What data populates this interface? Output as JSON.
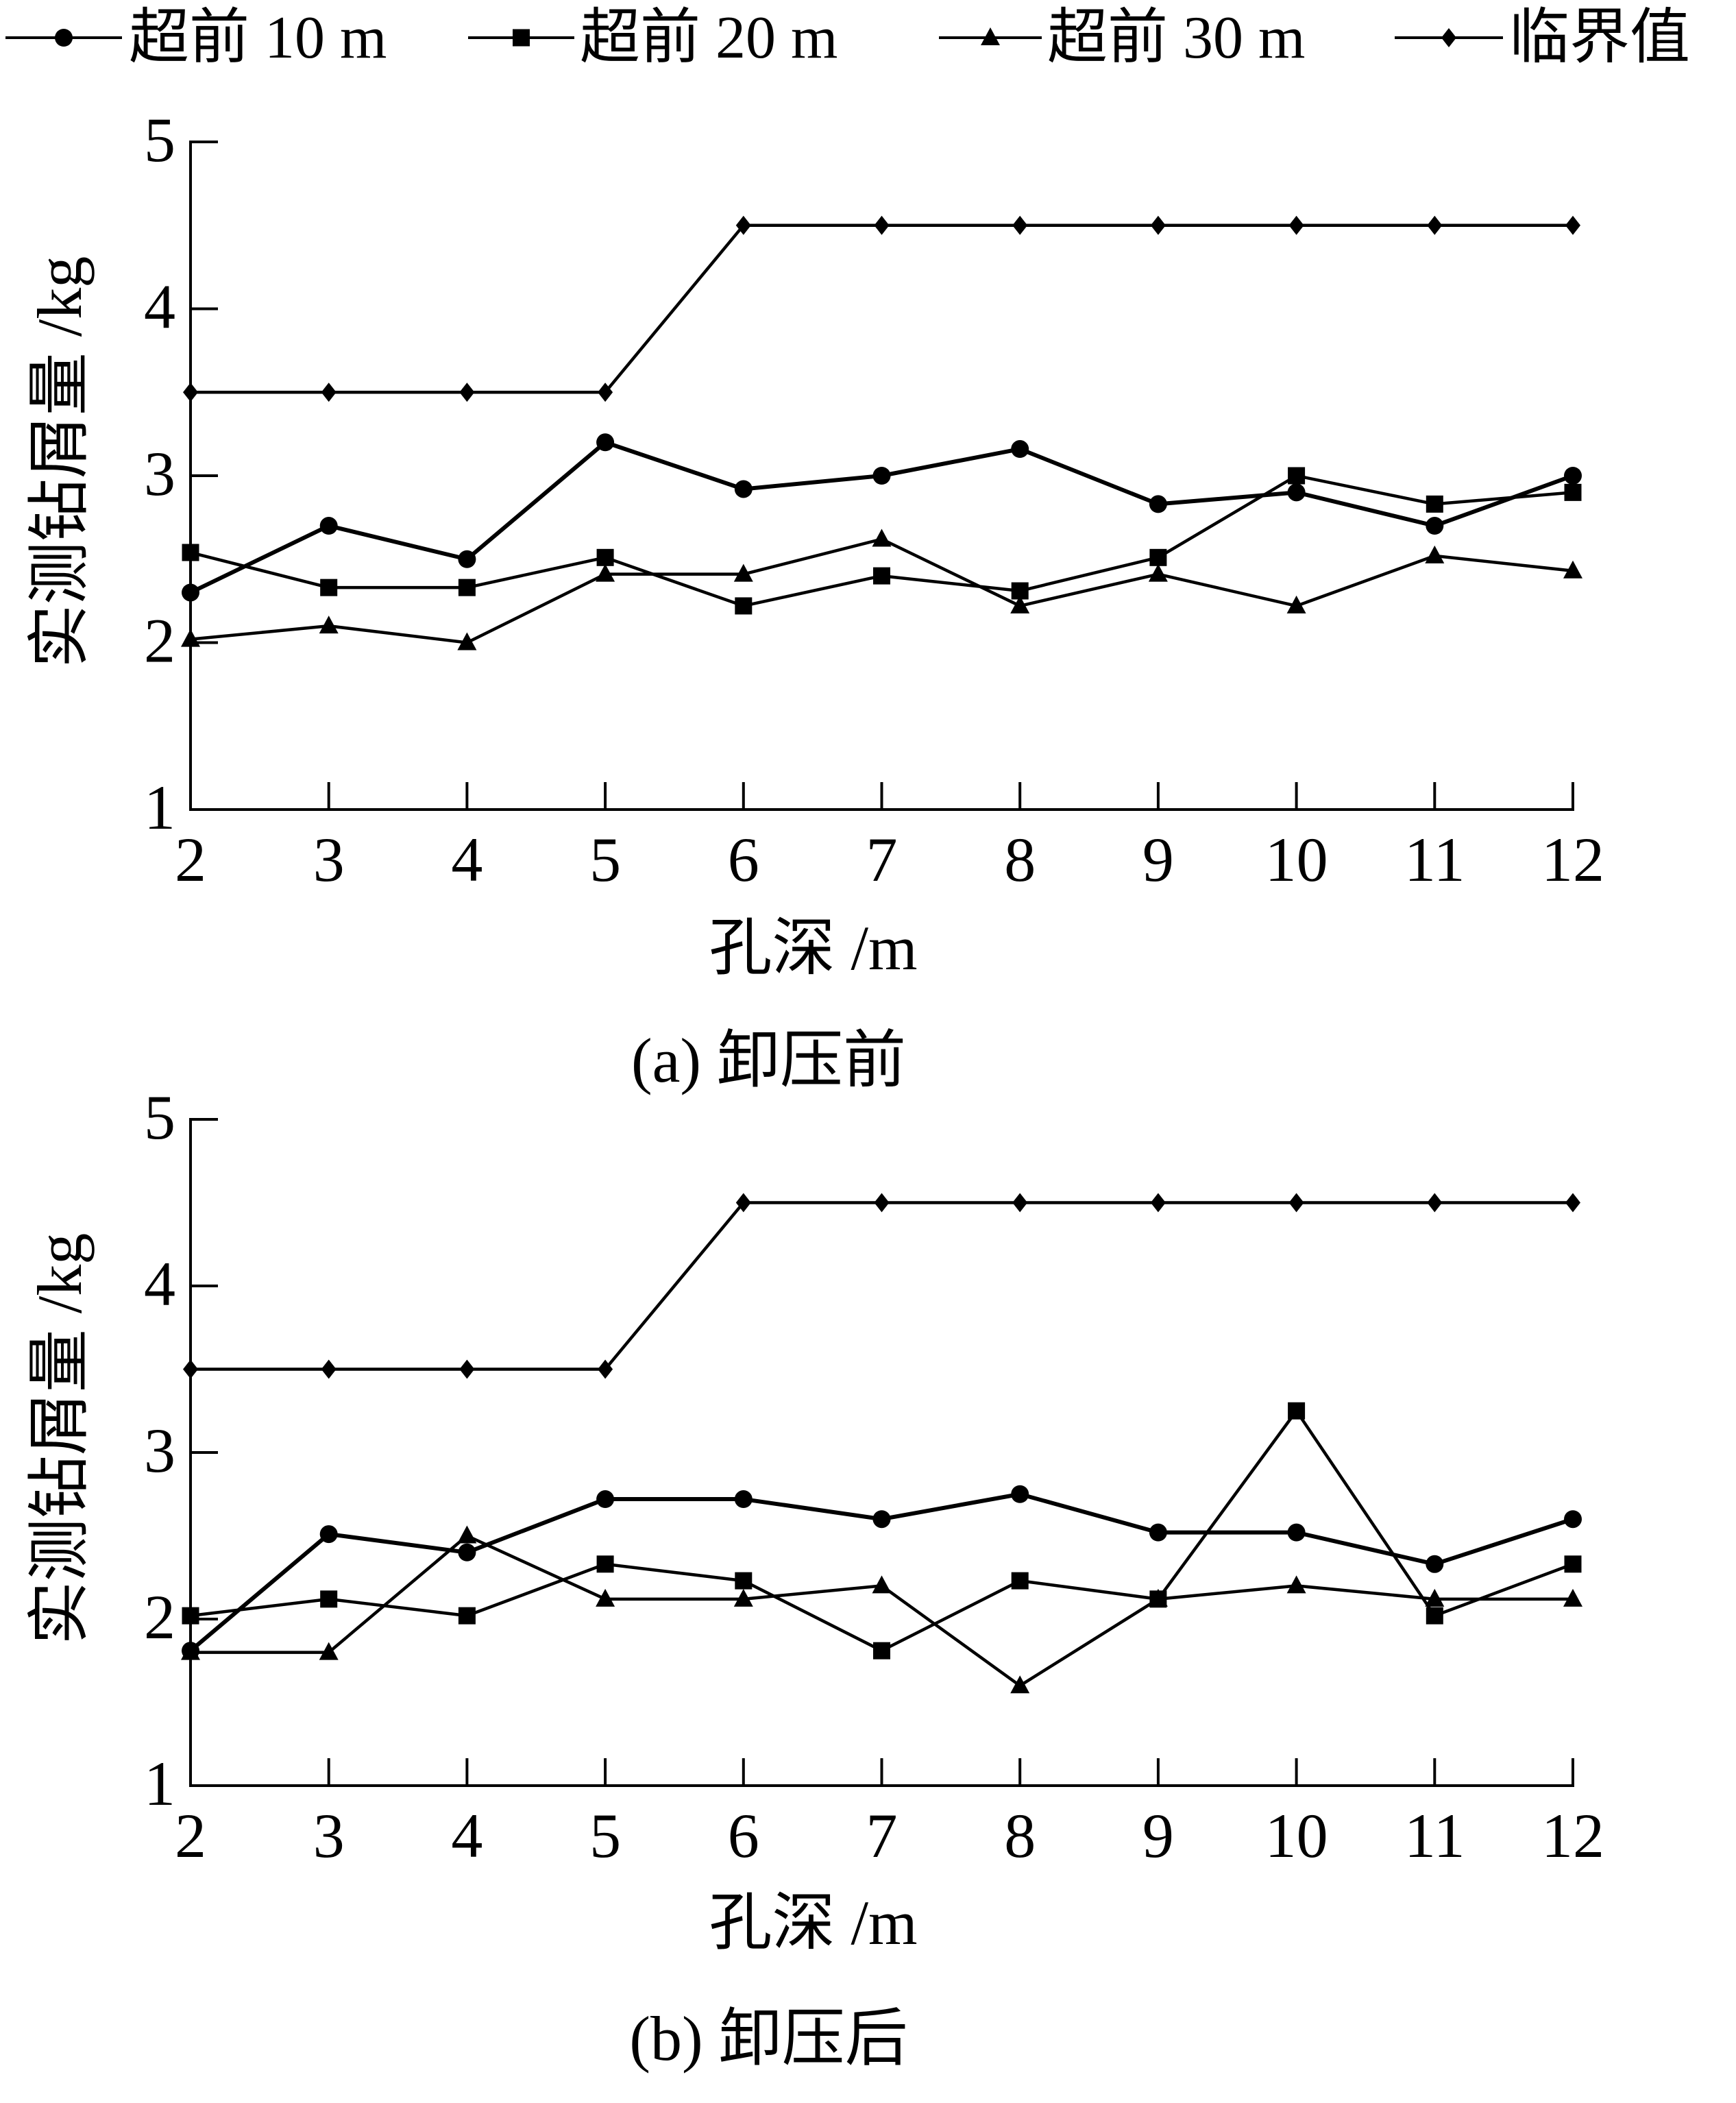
{
  "legend": {
    "position": "top",
    "items": [
      {
        "label": "超前 10 m",
        "marker": "circle"
      },
      {
        "label": "超前 20 m",
        "marker": "square"
      },
      {
        "label": "超前 30 m",
        "marker": "triangle"
      },
      {
        "label": "临界值",
        "marker": "diamond"
      }
    ]
  },
  "colors": {
    "line": "#000000",
    "background": "#ffffff"
  },
  "chart_data": [
    {
      "type": "line",
      "caption": "(a) 卸压前",
      "xlabel": "孔深 /m",
      "ylabel": "实测钻屑量 /kg",
      "x": [
        2,
        3,
        4,
        5,
        6,
        7,
        8,
        9,
        10,
        11,
        12
      ],
      "xticks": [
        "2",
        "3",
        "4",
        "5",
        "6",
        "7",
        "8",
        "9",
        "10",
        "11",
        "12"
      ],
      "yticks": [
        "1",
        "2",
        "3",
        "4",
        "5"
      ],
      "xlim": [
        2,
        12
      ],
      "ylim": [
        1,
        5
      ],
      "grid": false,
      "series": [
        {
          "name": "超前 10 m",
          "marker": "circle",
          "values": [
            2.3,
            2.7,
            2.5,
            3.2,
            2.92,
            3.0,
            3.16,
            2.83,
            2.9,
            2.7,
            3.0
          ]
        },
        {
          "name": "超前 20 m",
          "marker": "square",
          "values": [
            2.54,
            2.33,
            2.33,
            2.51,
            2.22,
            2.4,
            2.31,
            2.51,
            3.0,
            2.83,
            2.9
          ]
        },
        {
          "name": "超前 30 m",
          "marker": "triangle",
          "values": [
            2.02,
            2.1,
            2.0,
            2.41,
            2.41,
            2.62,
            2.22,
            2.41,
            2.22,
            2.52,
            2.43
          ]
        },
        {
          "name": "临界值",
          "marker": "diamond",
          "values": [
            3.5,
            3.5,
            3.5,
            3.5,
            4.5,
            4.5,
            4.5,
            4.5,
            4.5,
            4.5,
            4.5
          ]
        }
      ]
    },
    {
      "type": "line",
      "caption": "(b) 卸压后",
      "xlabel": "孔深 /m",
      "ylabel": "实测钻屑量 /kg",
      "x": [
        2,
        3,
        4,
        5,
        6,
        7,
        8,
        9,
        10,
        11,
        12
      ],
      "xticks": [
        "2",
        "3",
        "4",
        "5",
        "6",
        "7",
        "8",
        "9",
        "10",
        "11",
        "12"
      ],
      "yticks": [
        "1",
        "2",
        "3",
        "4",
        "5"
      ],
      "xlim": [
        2,
        12
      ],
      "ylim": [
        1,
        5
      ],
      "grid": false,
      "series": [
        {
          "name": "超前 10 m",
          "marker": "circle",
          "values": [
            1.81,
            2.51,
            2.4,
            2.72,
            2.72,
            2.6,
            2.75,
            2.52,
            2.52,
            2.33,
            2.6
          ]
        },
        {
          "name": "超前 20 m",
          "marker": "square",
          "values": [
            2.02,
            2.12,
            2.02,
            2.33,
            2.23,
            1.81,
            2.23,
            2.12,
            3.25,
            2.02,
            2.33
          ]
        },
        {
          "name": "超前 30 m",
          "marker": "triangle",
          "values": [
            1.8,
            1.8,
            2.5,
            2.12,
            2.12,
            2.2,
            1.6,
            2.12,
            2.2,
            2.12,
            2.12
          ]
        },
        {
          "name": "临界值",
          "marker": "diamond",
          "values": [
            3.5,
            3.5,
            3.5,
            3.5,
            4.5,
            4.5,
            4.5,
            4.5,
            4.5,
            4.5,
            4.5
          ]
        }
      ]
    }
  ]
}
